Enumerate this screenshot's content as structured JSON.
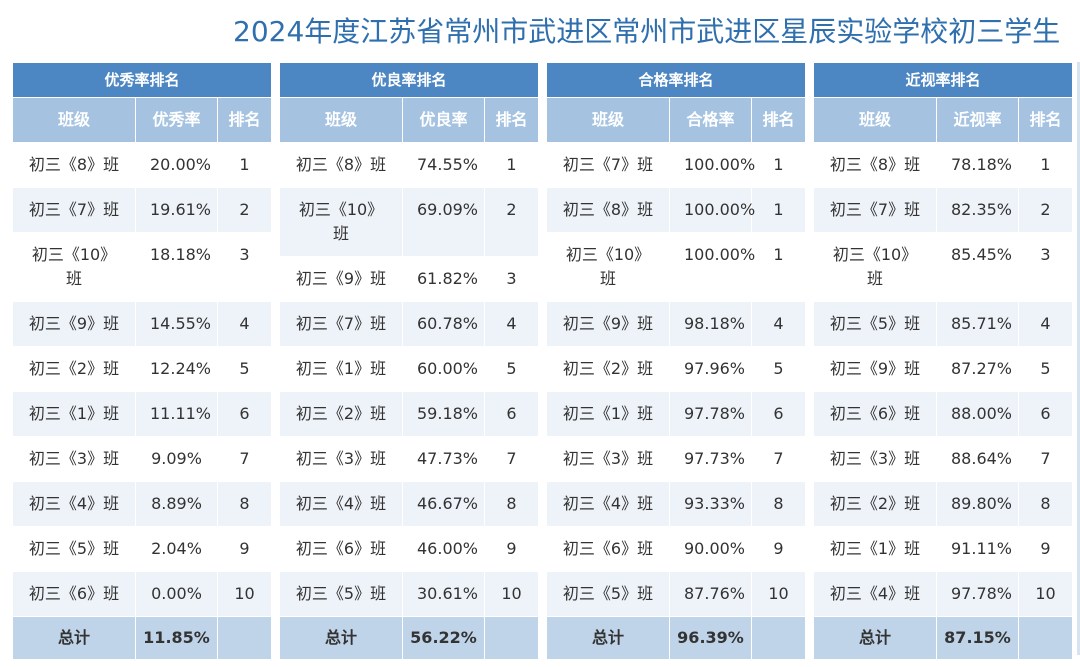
{
  "title": "2024年度江苏省常州市武进区常州市武进区星辰实验学校初三学生",
  "tables": [
    {
      "title": "优秀率排名",
      "columns": [
        "班级",
        "优秀率",
        "排名"
      ],
      "rows": [
        [
          "初三《8》班",
          "20.00%",
          1
        ],
        [
          "初三《7》班",
          "19.61%",
          2
        ],
        [
          "初三《10》班",
          "18.18%",
          3
        ],
        [
          "初三《9》班",
          "14.55%",
          4
        ],
        [
          "初三《2》班",
          "12.24%",
          5
        ],
        [
          "初三《1》班",
          "11.11%",
          6
        ],
        [
          "初三《3》班",
          "9.09%",
          7
        ],
        [
          "初三《4》班",
          "8.89%",
          8
        ],
        [
          "初三《5》班",
          "2.04%",
          9
        ],
        [
          "初三《6》班",
          "0.00%",
          10
        ]
      ],
      "total": {
        "label": "总计",
        "value": "11.85%"
      }
    },
    {
      "title": "优良率排名",
      "columns": [
        "班级",
        "优良率",
        "排名"
      ],
      "rows": [
        [
          "初三《8》班",
          "74.55%",
          1
        ],
        [
          "初三《10》班",
          "69.09%",
          2
        ],
        [
          "初三《9》班",
          "61.82%",
          3
        ],
        [
          "初三《7》班",
          "60.78%",
          4
        ],
        [
          "初三《1》班",
          "60.00%",
          5
        ],
        [
          "初三《2》班",
          "59.18%",
          6
        ],
        [
          "初三《3》班",
          "47.73%",
          7
        ],
        [
          "初三《4》班",
          "46.67%",
          8
        ],
        [
          "初三《6》班",
          "46.00%",
          9
        ],
        [
          "初三《5》班",
          "30.61%",
          10
        ]
      ],
      "total": {
        "label": "总计",
        "value": "56.22%"
      }
    },
    {
      "title": "合格率排名",
      "columns": [
        "班级",
        "合格率",
        "排名"
      ],
      "rows": [
        [
          "初三《7》班",
          "100.00%",
          1
        ],
        [
          "初三《8》班",
          "100.00%",
          1
        ],
        [
          "初三《10》班",
          "100.00%",
          1
        ],
        [
          "初三《9》班",
          "98.18%",
          4
        ],
        [
          "初三《2》班",
          "97.96%",
          5
        ],
        [
          "初三《1》班",
          "97.78%",
          6
        ],
        [
          "初三《3》班",
          "97.73%",
          7
        ],
        [
          "初三《4》班",
          "93.33%",
          8
        ],
        [
          "初三《6》班",
          "90.00%",
          9
        ],
        [
          "初三《5》班",
          "87.76%",
          10
        ]
      ],
      "total": {
        "label": "总计",
        "value": "96.39%"
      }
    },
    {
      "title": "近视率排名",
      "columns": [
        "班级",
        "近视率",
        "排名"
      ],
      "rows": [
        [
          "初三《8》班",
          "78.18%",
          1
        ],
        [
          "初三《7》班",
          "82.35%",
          2
        ],
        [
          "初三《10》班",
          "85.45%",
          3
        ],
        [
          "初三《5》班",
          "85.71%",
          4
        ],
        [
          "初三《9》班",
          "87.27%",
          5
        ],
        [
          "初三《6》班",
          "88.00%",
          6
        ],
        [
          "初三《3》班",
          "88.64%",
          7
        ],
        [
          "初三《2》班",
          "89.80%",
          8
        ],
        [
          "初三《1》班",
          "91.11%",
          9
        ],
        [
          "初三《4》班",
          "97.78%",
          10
        ]
      ],
      "total": {
        "label": "总计",
        "value": "87.15%"
      }
    }
  ]
}
